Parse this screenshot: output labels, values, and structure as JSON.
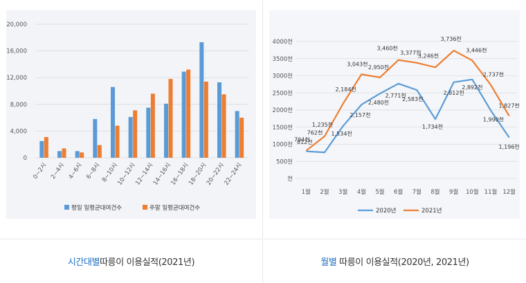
{
  "panels": [
    {
      "caption_highlight": "시간대별",
      "caption_rest": "따릉이 이용실적(2021년)"
    },
    {
      "caption_highlight": "월별",
      "caption_rest": " 따릉이 이용실적(2020년, 2021년)"
    }
  ],
  "chart_data": [
    {
      "type": "bar",
      "categories": [
        "0~2시",
        "2~4시",
        "4~6시",
        "6~8시",
        "8~10시",
        "10~12시",
        "12~14시",
        "14~16시",
        "16~18시",
        "18~20시",
        "20~22시",
        "22~24시"
      ],
      "series": [
        {
          "name": "평일 일평균대여건수",
          "color": "#5b9bd5",
          "values": [
            2500,
            1000,
            1000,
            5800,
            10600,
            6100,
            7500,
            8100,
            12900,
            17300,
            11300,
            7000
          ]
        },
        {
          "name": "주말 일평균대여건수",
          "color": "#ed7d31",
          "values": [
            3100,
            1400,
            800,
            1900,
            4800,
            7100,
            9600,
            11800,
            13200,
            11400,
            9500,
            6000
          ]
        }
      ],
      "yticks": [
        "0",
        "4,000",
        "8,000",
        "12,000",
        "16,000",
        "20,000"
      ],
      "ylim": [
        0,
        20000
      ],
      "grid": true,
      "legend": "bottom"
    },
    {
      "type": "line",
      "categories": [
        "1월",
        "2월",
        "3월",
        "4월",
        "5월",
        "6월",
        "7월",
        "8월",
        "9월",
        "10월",
        "11월",
        "12월"
      ],
      "series": [
        {
          "name": "2020년",
          "color": "#5b9bd5",
          "values": [
            794,
            762,
            1534,
            2157,
            2480,
            2771,
            2583,
            1734,
            2812,
            2892,
            1990,
            1196
          ],
          "labels": [
            "794천",
            "762천",
            "1,534천",
            "2,157천",
            "2,480천",
            "2,771천",
            "2,583천",
            "1,734천",
            "2,812천",
            "2,892천",
            "1,990천",
            "1,196천"
          ]
        },
        {
          "name": "2021년",
          "color": "#ed7d31",
          "values": [
            812,
            1235,
            2184,
            3043,
            2950,
            3460,
            3377,
            3246,
            3736,
            3446,
            2737,
            1827
          ],
          "labels": [
            "812천",
            "1,235천",
            "2,184천",
            "3,043천",
            "2,950천",
            "3,460천",
            "3,377천",
            "3,246천",
            "3,736천",
            "3,446천",
            "2,737천",
            "1,827천"
          ]
        }
      ],
      "yticks": [
        "천",
        "500천",
        "1000천",
        "1500천",
        "2000천",
        "2500천",
        "3000천",
        "3500천",
        "4000천"
      ],
      "ylim": [
        0,
        4000
      ],
      "grid": true,
      "legend": "bottom"
    }
  ]
}
